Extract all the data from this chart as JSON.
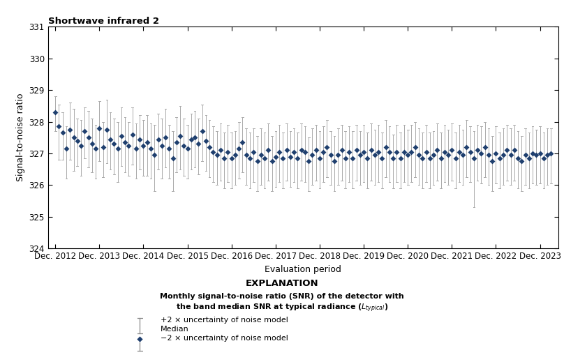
{
  "title": "Shortwave infrared 2",
  "ylabel": "Signal-to-noise ratio",
  "xlabel": "Evaluation period",
  "ylim": [
    324,
    331
  ],
  "yticks": [
    324,
    325,
    326,
    327,
    328,
    329,
    330,
    331
  ],
  "x_tick_labels": [
    "Dec. 2012",
    "Dec. 2013",
    "Dec. 2014",
    "Dec. 2015",
    "Dec. 2016",
    "Dec. 2017",
    "Dec. 2018",
    "Dec. 2019",
    "Dec. 2020",
    "Dec. 2021",
    "Dec. 2022",
    "Dec. 2023"
  ],
  "marker_color": "#1f3f6e",
  "errorbar_color": "#aaaaaa",
  "explanation_title": "EXPLANATION",
  "legend_plus2": "+2 × uncertainty of noise model",
  "legend_median": "Median",
  "legend_minus2": "−2 × uncertainty of noise model",
  "medians": [
    328.3,
    327.85,
    327.65,
    327.15,
    327.75,
    327.5,
    327.4,
    327.25,
    327.7,
    327.5,
    327.3,
    327.15,
    327.8,
    327.2,
    327.75,
    327.45,
    327.3,
    327.15,
    327.55,
    327.35,
    327.25,
    327.6,
    327.15,
    327.45,
    327.25,
    327.35,
    327.15,
    326.95,
    327.45,
    327.25,
    327.5,
    327.15,
    326.85,
    327.35,
    327.55,
    327.25,
    327.15,
    327.45,
    327.5,
    327.3,
    327.7,
    327.4,
    327.2,
    327.05,
    326.95,
    327.1,
    326.85,
    327.05,
    326.85,
    326.95,
    327.15,
    327.35,
    326.95,
    326.85,
    327.05,
    326.75,
    326.95,
    326.85,
    327.1,
    326.75,
    326.9,
    327.05,
    326.85,
    327.1,
    326.9,
    327.05,
    326.85,
    327.1,
    327.05,
    326.75,
    326.95,
    327.1,
    326.85,
    327.05,
    327.2,
    326.95,
    326.75,
    326.95,
    327.1,
    326.85,
    327.05,
    326.85,
    327.1,
    326.95,
    327.05,
    326.85,
    327.1,
    326.95,
    327.05,
    326.85,
    327.2,
    327.05,
    326.85,
    327.05,
    326.85,
    327.05,
    326.95,
    327.05,
    327.2,
    326.95,
    326.85,
    327.05,
    326.85,
    326.95,
    327.1,
    326.85,
    327.05,
    326.95,
    327.1,
    326.85,
    327.05,
    326.95,
    327.2,
    327.05,
    326.85,
    327.1,
    327.0,
    327.2,
    326.95,
    326.75,
    327.0,
    326.85,
    326.95,
    327.1,
    326.95,
    327.1,
    326.85,
    326.75,
    326.95,
    326.85,
    327.0,
    326.95,
    327.0,
    326.85,
    326.95,
    327.0
  ],
  "upper_errors": [
    0.5,
    0.7,
    0.65,
    0.7,
    0.85,
    0.9,
    0.7,
    0.8,
    0.75,
    0.85,
    0.8,
    0.75,
    0.85,
    0.8,
    0.95,
    0.85,
    0.8,
    0.85,
    0.9,
    0.8,
    0.75,
    0.85,
    0.8,
    0.75,
    0.8,
    0.85,
    0.8,
    0.95,
    0.8,
    0.85,
    0.9,
    0.75,
    0.85,
    0.8,
    0.95,
    0.85,
    0.75,
    0.8,
    0.85,
    0.8,
    0.85,
    0.8,
    0.85,
    0.8,
    0.75,
    0.85,
    0.8,
    0.85,
    0.8,
    0.75,
    0.85,
    0.8,
    0.85,
    0.8,
    0.75,
    0.8,
    0.85,
    0.8,
    0.85,
    0.8,
    0.8,
    0.85,
    0.8,
    0.85,
    0.8,
    0.75,
    0.8,
    0.85,
    0.8,
    0.75,
    0.85,
    0.8,
    0.85,
    0.8,
    0.85,
    0.75,
    0.8,
    0.85,
    0.8,
    0.85,
    0.8,
    0.85,
    0.8,
    0.75,
    0.85,
    0.8,
    0.85,
    0.8,
    0.85,
    0.8,
    0.85,
    0.8,
    0.75,
    0.85,
    0.8,
    0.85,
    0.8,
    0.85,
    0.8,
    0.85,
    0.8,
    0.85,
    0.8,
    0.75,
    0.85,
    0.8,
    0.85,
    0.8,
    0.85,
    0.8,
    0.85,
    0.8,
    0.85,
    0.8,
    0.85,
    0.8,
    0.85,
    0.8,
    0.85,
    0.8,
    0.85,
    0.8,
    0.85,
    0.8,
    0.85,
    0.8,
    0.85,
    0.8,
    0.85,
    0.8,
    0.85,
    0.8,
    0.85,
    0.8,
    0.85,
    0.8
  ],
  "lower_errors": [
    0.6,
    1.05,
    0.85,
    0.95,
    0.95,
    1.05,
    0.8,
    0.95,
    0.85,
    0.95,
    0.9,
    0.95,
    1.05,
    0.95,
    1.05,
    0.95,
    0.95,
    1.05,
    0.95,
    0.95,
    0.95,
    0.95,
    0.95,
    0.95,
    0.95,
    1.05,
    0.95,
    1.15,
    0.95,
    1.05,
    0.95,
    0.95,
    1.05,
    0.95,
    1.05,
    0.95,
    0.95,
    0.95,
    0.95,
    0.95,
    0.95,
    0.95,
    0.95,
    0.95,
    0.95,
    0.95,
    0.95,
    0.95,
    0.95,
    0.95,
    0.95,
    0.95,
    0.95,
    0.95,
    0.95,
    0.95,
    0.95,
    0.95,
    0.95,
    0.95,
    0.95,
    0.95,
    0.95,
    0.95,
    0.95,
    0.95,
    0.95,
    0.95,
    0.95,
    0.95,
    0.95,
    0.95,
    0.95,
    0.95,
    0.95,
    0.95,
    0.95,
    0.95,
    0.95,
    0.95,
    0.95,
    0.95,
    0.95,
    0.95,
    0.95,
    0.95,
    0.95,
    0.95,
    0.95,
    0.95,
    0.95,
    0.95,
    0.95,
    0.95,
    0.95,
    0.95,
    0.95,
    0.95,
    0.95,
    0.95,
    0.95,
    0.95,
    0.95,
    0.95,
    0.95,
    0.95,
    0.95,
    0.95,
    0.95,
    0.95,
    0.95,
    0.95,
    0.95,
    0.95,
    1.55,
    0.95,
    0.95,
    0.95,
    0.95,
    0.95,
    0.95,
    0.95,
    0.95,
    0.95,
    0.95,
    0.95,
    0.95,
    0.95,
    0.95,
    0.95,
    0.95,
    0.95,
    0.95,
    0.95,
    0.95,
    0.95
  ]
}
